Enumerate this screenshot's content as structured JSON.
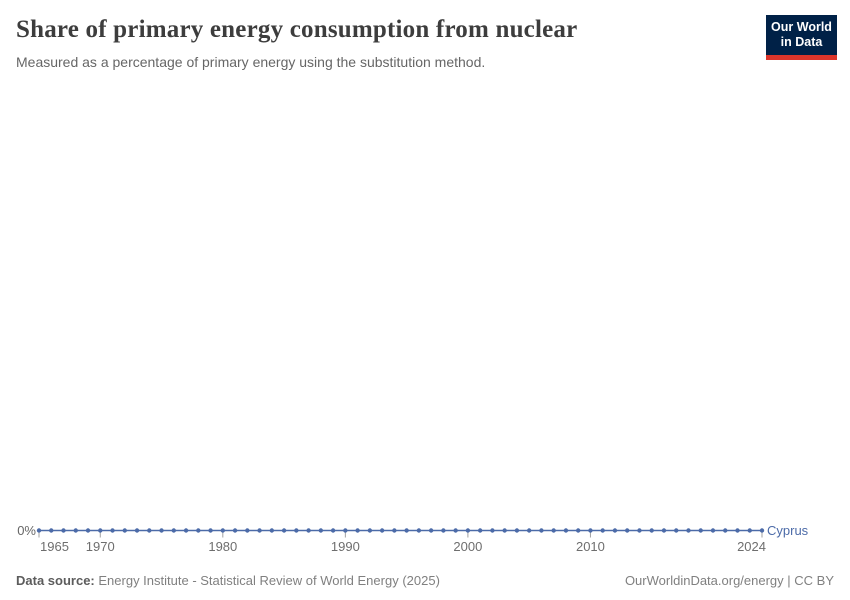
{
  "header": {
    "logo": {
      "line1": "Our World",
      "line2": "in Data"
    }
  },
  "chart_data": {
    "type": "line",
    "title": "Share of primary energy consumption from nuclear",
    "subtitle": "Measured as a percentage of primary energy using the substitution method.",
    "entity_label": "Cyprus",
    "x": [
      1965,
      1966,
      1967,
      1968,
      1969,
      1970,
      1971,
      1972,
      1973,
      1974,
      1975,
      1976,
      1977,
      1978,
      1979,
      1980,
      1981,
      1982,
      1983,
      1984,
      1985,
      1986,
      1987,
      1988,
      1989,
      1990,
      1991,
      1992,
      1993,
      1994,
      1995,
      1996,
      1997,
      1998,
      1999,
      2000,
      2001,
      2002,
      2003,
      2004,
      2005,
      2006,
      2007,
      2008,
      2009,
      2010,
      2011,
      2012,
      2013,
      2014,
      2015,
      2016,
      2017,
      2018,
      2019,
      2020,
      2021,
      2022,
      2023,
      2024
    ],
    "series": [
      {
        "name": "Cyprus",
        "values": [
          0,
          0,
          0,
          0,
          0,
          0,
          0,
          0,
          0,
          0,
          0,
          0,
          0,
          0,
          0,
          0,
          0,
          0,
          0,
          0,
          0,
          0,
          0,
          0,
          0,
          0,
          0,
          0,
          0,
          0,
          0,
          0,
          0,
          0,
          0,
          0,
          0,
          0,
          0,
          0,
          0,
          0,
          0,
          0,
          0,
          0,
          0,
          0,
          0,
          0,
          0,
          0,
          0,
          0,
          0,
          0,
          0,
          0,
          0,
          0
        ]
      }
    ],
    "x_ticks": [
      1965,
      1970,
      1980,
      1990,
      2000,
      2010,
      2024
    ],
    "y_zero_label": "0%",
    "ylabel": "",
    "xlabel": "",
    "ylim": [
      0,
      0
    ],
    "grid": "off",
    "legend_position": "end-of-line",
    "line_color": "#4c6ba8",
    "tick_color": "#a0a0a0",
    "tick_label_color": "#6e6e6e",
    "zero_label_color": "#666666"
  },
  "footer": {
    "datasource_label": "Data source:",
    "datasource_value": "Energy Institute - Statistical Review of World Energy (2025)",
    "link": "OurWorldinData.org/energy | CC BY"
  }
}
